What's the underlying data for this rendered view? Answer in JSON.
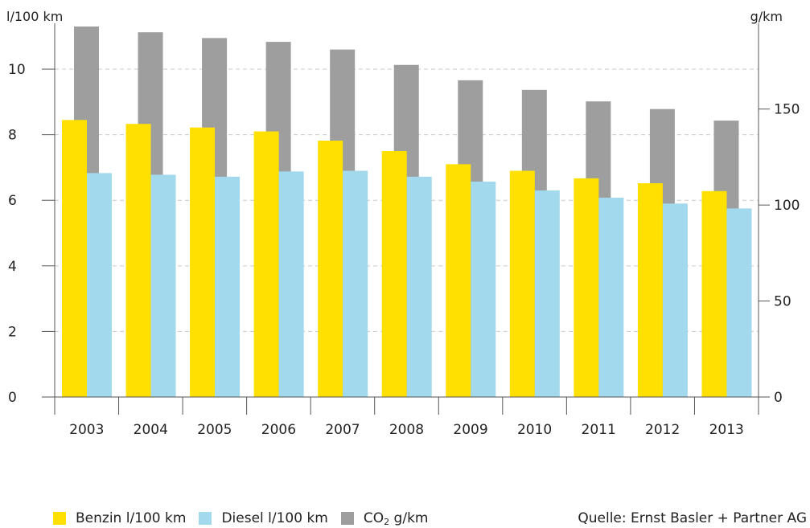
{
  "chart_data": {
    "type": "bar",
    "categories": [
      "2003",
      "2004",
      "2005",
      "2006",
      "2007",
      "2008",
      "2009",
      "2010",
      "2011",
      "2012",
      "2013"
    ],
    "left_axis": {
      "label": "l/100 km",
      "ylim": [
        0,
        11.3
      ],
      "ticks": [
        0,
        2,
        4,
        6,
        8,
        10
      ]
    },
    "right_axis": {
      "label": "g/km",
      "ylim": [
        0,
        193
      ],
      "ticks": [
        0,
        50,
        100,
        150
      ]
    },
    "grid": true,
    "series": [
      {
        "name": "Benzin l/100 km",
        "axis": "left",
        "color": "#FFE000",
        "values": [
          8.45,
          8.33,
          8.22,
          8.1,
          7.82,
          7.5,
          7.1,
          6.9,
          6.67,
          6.52,
          6.28
        ]
      },
      {
        "name": "Diesel l/100 km",
        "axis": "left",
        "color": "#A3D9EC",
        "values": [
          6.83,
          6.78,
          6.72,
          6.88,
          6.9,
          6.72,
          6.57,
          6.3,
          6.08,
          5.9,
          5.75
        ]
      },
      {
        "name": "CO₂ g/km",
        "axis": "right",
        "color": "#9E9E9E",
        "values": [
          193,
          190,
          187,
          185,
          181,
          173,
          165,
          160,
          154,
          150,
          144
        ]
      }
    ],
    "legend_position": "bottom-left",
    "source": "Quelle: Ernst Basler + Partner AG"
  },
  "legend": {
    "benzin": "Benzin l/100 km",
    "diesel": "Diesel l/100 km",
    "co2_prefix": "CO",
    "co2_sub": "2",
    "co2_suffix": " g/km"
  }
}
